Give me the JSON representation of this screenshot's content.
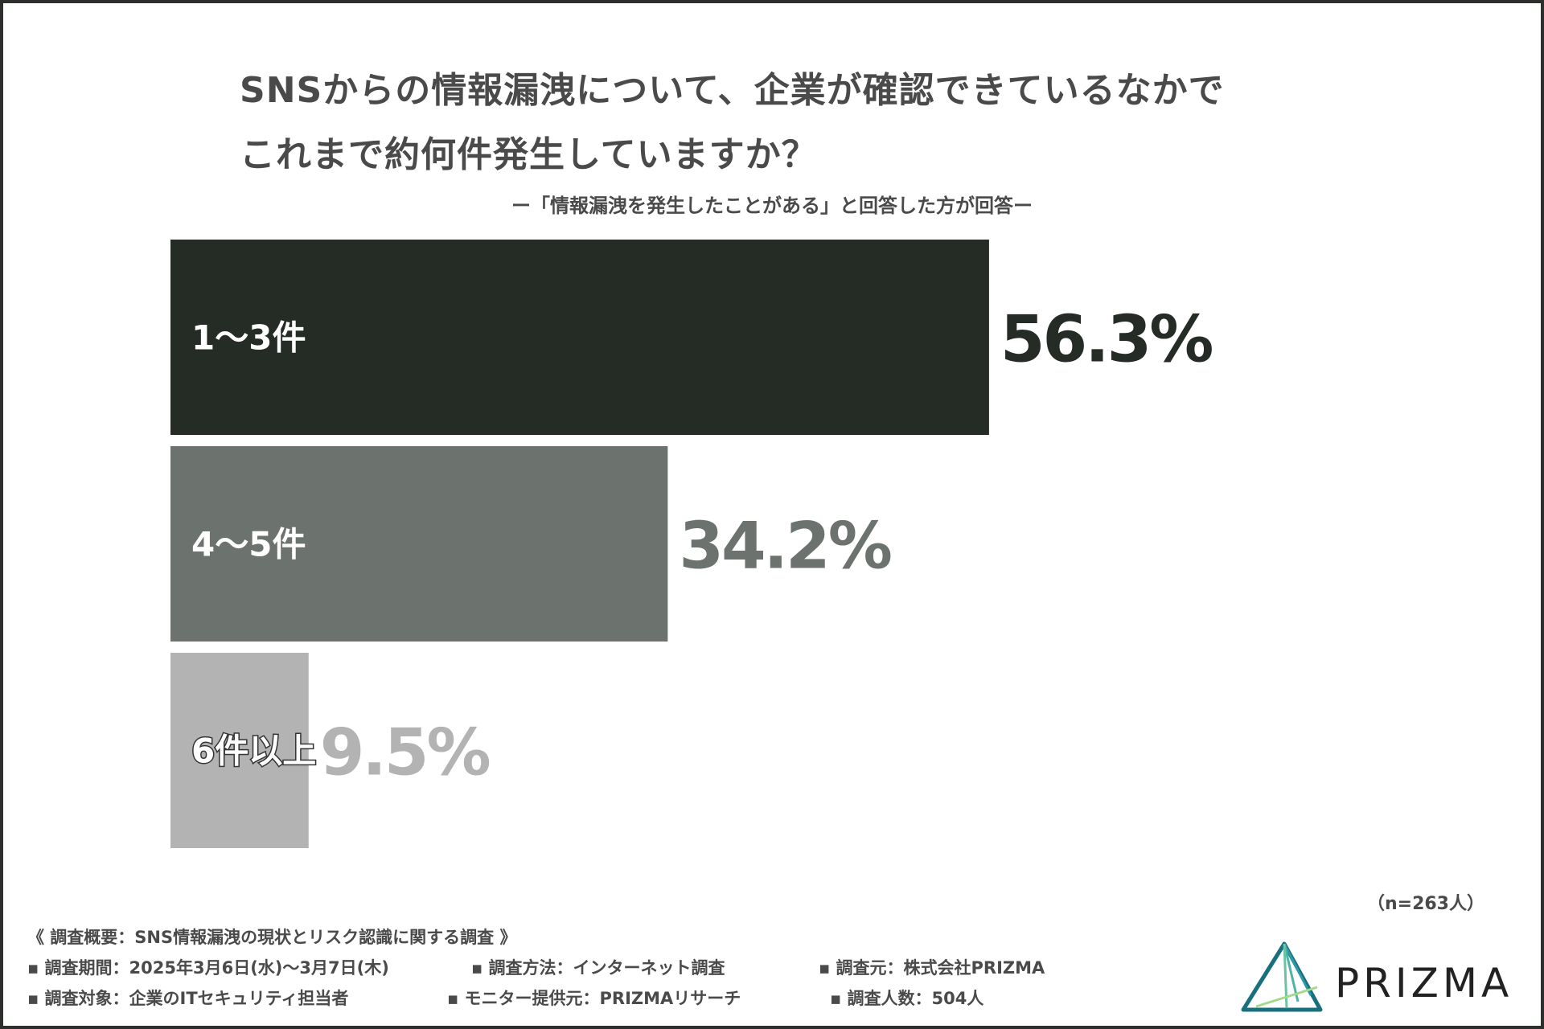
{
  "chart_data": {
    "type": "bar",
    "orientation": "horizontal",
    "title": "SNSからの情報漏洩について、企業が確認できているなかで\nこれまで約何件発生していますか？",
    "title_lines": [
      "SNSからの情報漏洩について、企業が確認できているなかで",
      "これまで約何件発生していますか？"
    ],
    "subtitle": "ー「情報漏洩を発生したことがある」と回答した方が回答ー",
    "categories": [
      "1～3件",
      "4～5件",
      "6件以上"
    ],
    "values": [
      56.3,
      34.2,
      9.5
    ],
    "value_labels": [
      "56.3%",
      "34.2%",
      "9.5%"
    ],
    "unit": "%",
    "colors": [
      "#252c26",
      "#6c726d",
      "#b3b3b3"
    ],
    "value_label_colors": [
      "#252c26",
      "#6c726d",
      "#b3b3b3"
    ],
    "xlim": [
      0,
      100
    ],
    "grid": false,
    "legend": "none"
  },
  "sample_size": "（n=263人）",
  "survey": {
    "heading": "《 調査概要：SNS情報漏洩の現状とリスク認識に関する調査 》",
    "period": "▪ 調査期間：2025年3月6日(水)～3月7日(木)",
    "method": "▪ 調査方法：インターネット調査",
    "source": "▪ 調査元：株式会社PRIZMA",
    "target": "▪ 調査対象：企業のITセキュリティ担当者",
    "provider": "▪ モニター提供元：PRIZMAリサーチ",
    "respondents": "▪ 調査人数：504人"
  },
  "logo": {
    "text": "PRIZMA",
    "colors": [
      "#1a6f7f",
      "#2a9aa7",
      "#6cc3a2",
      "#a6d889"
    ]
  }
}
